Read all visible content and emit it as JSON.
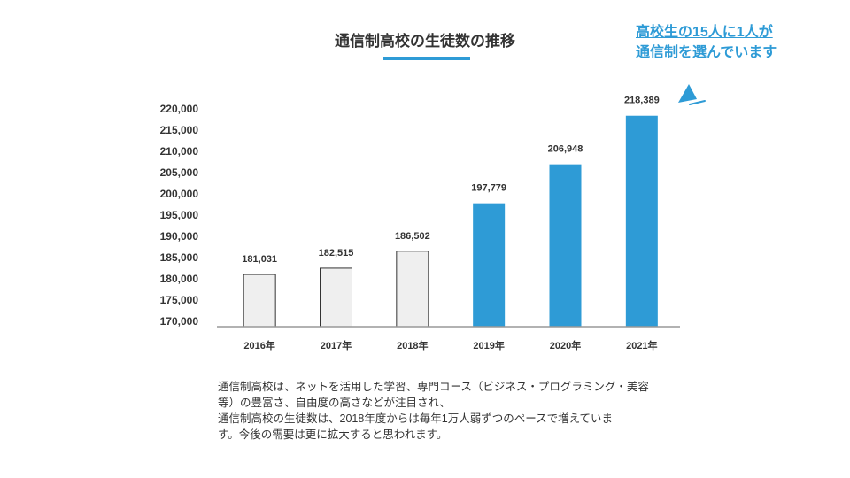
{
  "header": {
    "title": "通信制高校の生徒数の推移",
    "callout_line1": "高校生の15人に1人が",
    "callout_line2": "通信制を選んでいます"
  },
  "colors": {
    "accent": "#2e9bd6",
    "bar_light": "#efefef",
    "bar_light_stroke": "#333333",
    "axis": "#999999",
    "text": "#333333"
  },
  "description": {
    "lines": [
      "通信制高校は、ネットを活用した学習、専門コース（ビジネス・プログラミング・美容",
      "等）の豊富さ、自由度の高さなどが注目され、",
      "通信制高校の生徒数は、2018年度からは毎年1万人弱ずつのペースで増えていま",
      "す。今後の需要は更に拡大すると思われます。"
    ]
  },
  "chart_data": {
    "type": "bar",
    "title": "通信制高校の生徒数の推移",
    "categories": [
      "2016年",
      "2017年",
      "2018年",
      "2019年",
      "2020年",
      "2021年"
    ],
    "values": [
      181031,
      182515,
      186502,
      197779,
      206948,
      218389
    ],
    "value_labels": [
      "181,031",
      "182,515",
      "186,502",
      "197,779",
      "206,948",
      "218,389"
    ],
    "highlighted": [
      false,
      false,
      false,
      true,
      true,
      true
    ],
    "ylim": [
      170000,
      220000
    ],
    "yticks": [
      170000,
      175000,
      180000,
      185000,
      190000,
      195000,
      200000,
      205000,
      210000,
      215000,
      220000
    ],
    "ytick_labels": [
      "170,000",
      "175,000",
      "180,000",
      "185,000",
      "190,000",
      "195,000",
      "200,000",
      "205,000",
      "210,000",
      "215,000",
      "220,000"
    ],
    "xlabel": "",
    "ylabel": "",
    "grid": false
  }
}
